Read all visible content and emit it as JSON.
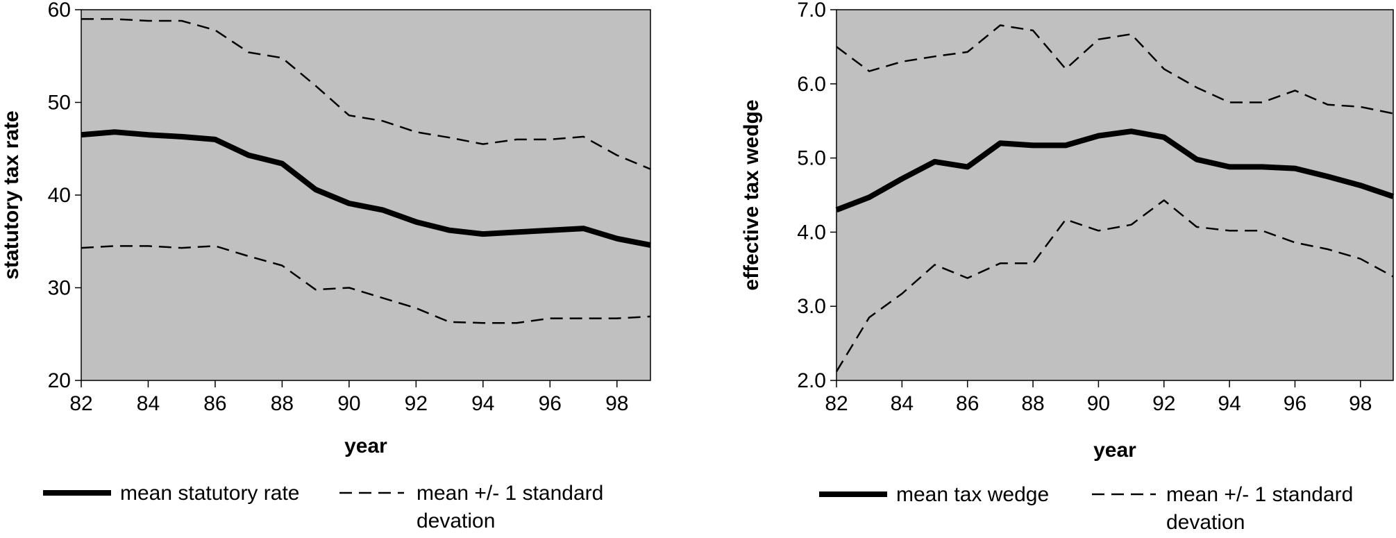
{
  "chart_data": [
    {
      "type": "line",
      "xlabel": "year",
      "ylabel": "statutory tax rate",
      "xlim": [
        82,
        99
      ],
      "ylim": [
        20,
        60
      ],
      "x_ticks": [
        "82",
        "84",
        "86",
        "88",
        "90",
        "92",
        "94",
        "96",
        "98"
      ],
      "y_ticks": [
        "20",
        "30",
        "40",
        "50",
        "60"
      ],
      "grid": false,
      "background": "#c0c0c0",
      "legend_position": "bottom",
      "x": [
        82,
        83,
        84,
        85,
        86,
        87,
        88,
        89,
        90,
        91,
        92,
        93,
        94,
        95,
        96,
        97,
        98,
        99
      ],
      "series": [
        {
          "name": "mean statutory rate",
          "style": "solid",
          "values": [
            46.5,
            46.8,
            46.5,
            46.3,
            46.0,
            44.3,
            43.4,
            40.6,
            39.1,
            38.4,
            37.1,
            36.2,
            35.8,
            36.0,
            36.2,
            36.4,
            35.3,
            34.6
          ]
        },
        {
          "name": "mean +/- 1 standard devation",
          "style": "dashed",
          "values": [
            59.0,
            59.0,
            58.8,
            58.8,
            57.8,
            55.4,
            54.8,
            51.8,
            48.6,
            48.0,
            46.8,
            46.2,
            45.5,
            46.0,
            46.0,
            46.3,
            44.3,
            42.8
          ]
        },
        {
          "name": "",
          "style": "dashed",
          "values": [
            34.3,
            34.5,
            34.5,
            34.3,
            34.5,
            33.4,
            32.4,
            29.8,
            30.0,
            28.9,
            27.8,
            26.3,
            26.2,
            26.2,
            26.7,
            26.7,
            26.7,
            26.9
          ]
        }
      ],
      "legend": {
        "solid_label": "mean statutory rate",
        "dashed_line1": "mean +/- 1 standard",
        "dashed_line2": "devation"
      }
    },
    {
      "type": "line",
      "xlabel": "year",
      "ylabel": "effective tax wedge",
      "xlim": [
        82,
        99
      ],
      "ylim": [
        2.0,
        7.0
      ],
      "x_ticks": [
        "82",
        "84",
        "86",
        "88",
        "90",
        "92",
        "94",
        "96",
        "98"
      ],
      "y_ticks": [
        "2.0",
        "3.0",
        "4.0",
        "5.0",
        "6.0",
        "7.0"
      ],
      "grid": false,
      "background": "#c0c0c0",
      "legend_position": "bottom",
      "x": [
        82,
        83,
        84,
        85,
        86,
        87,
        88,
        89,
        90,
        91,
        92,
        93,
        94,
        95,
        96,
        97,
        98,
        99
      ],
      "series": [
        {
          "name": "mean tax wedge",
          "style": "solid",
          "values": [
            4.3,
            4.47,
            4.72,
            4.95,
            4.88,
            5.2,
            5.17,
            5.17,
            5.3,
            5.36,
            5.28,
            4.98,
            4.88,
            4.88,
            4.86,
            4.75,
            4.63,
            4.48
          ]
        },
        {
          "name": "mean +/- 1 standard devation",
          "style": "dashed",
          "values": [
            6.5,
            6.17,
            6.3,
            6.37,
            6.43,
            6.79,
            6.72,
            6.2,
            6.6,
            6.67,
            6.2,
            5.95,
            5.75,
            5.75,
            5.91,
            5.72,
            5.69,
            5.6
          ]
        },
        {
          "name": "",
          "style": "dashed",
          "values": [
            2.12,
            2.85,
            3.17,
            3.56,
            3.38,
            3.58,
            3.58,
            4.17,
            4.02,
            4.1,
            4.43,
            4.07,
            4.02,
            4.02,
            3.86,
            3.77,
            3.64,
            3.4
          ]
        }
      ],
      "legend": {
        "solid_label": "mean tax wedge",
        "dashed_line1": "mean +/- 1 standard",
        "dashed_line2": "devation"
      }
    }
  ]
}
